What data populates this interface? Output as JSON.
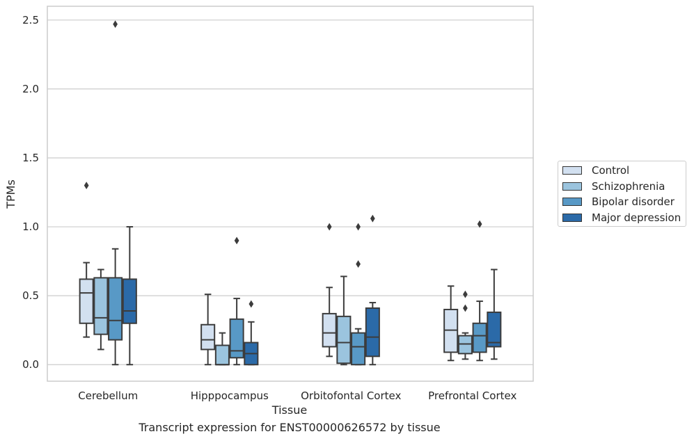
{
  "chart_data": {
    "type": "box",
    "title": "",
    "caption": "Transcript expression for ENST00000626572 by tissue",
    "xlabel": "Tissue",
    "ylabel": "TPMs",
    "ylim": [
      -0.12,
      2.6
    ],
    "yticks": [
      "0.0",
      "0.5",
      "1.0",
      "1.5",
      "2.0",
      "2.5"
    ],
    "ytick_values": [
      0,
      0.5,
      1.0,
      1.5,
      2.0,
      2.5
    ],
    "grid": "horizontal",
    "legend_position": "right",
    "categories": [
      "Cerebellum",
      "Hipppocampus",
      "Orbitofontal Cortex",
      "Prefrontal Cortex"
    ],
    "series": [
      {
        "name": "Control",
        "color": "#d2e0f0",
        "boxes": [
          {
            "whisker_low": 0.2,
            "q1": 0.3,
            "median": 0.52,
            "q3": 0.62,
            "whisker_high": 0.74,
            "outliers": [
              1.3
            ]
          },
          {
            "whisker_low": 0.0,
            "q1": 0.11,
            "median": 0.18,
            "q3": 0.29,
            "whisker_high": 0.51,
            "outliers": []
          },
          {
            "whisker_low": 0.06,
            "q1": 0.13,
            "median": 0.23,
            "q3": 0.37,
            "whisker_high": 0.56,
            "outliers": [
              1.0
            ]
          },
          {
            "whisker_low": 0.03,
            "q1": 0.09,
            "median": 0.25,
            "q3": 0.4,
            "whisker_high": 0.57,
            "outliers": []
          }
        ]
      },
      {
        "name": "Schizophrenia",
        "color": "#9bc4de",
        "boxes": [
          {
            "whisker_low": 0.11,
            "q1": 0.22,
            "median": 0.34,
            "q3": 0.63,
            "whisker_high": 0.69,
            "outliers": []
          },
          {
            "whisker_low": 0.0,
            "q1": 0.0,
            "median": 0.0,
            "q3": 0.14,
            "whisker_high": 0.23,
            "outliers": []
          },
          {
            "whisker_low": 0.0,
            "q1": 0.01,
            "median": 0.16,
            "q3": 0.35,
            "whisker_high": 0.64,
            "outliers": []
          },
          {
            "whisker_low": 0.04,
            "q1": 0.08,
            "median": 0.15,
            "q3": 0.21,
            "whisker_high": 0.23,
            "outliers": [
              0.41,
              0.51
            ]
          }
        ]
      },
      {
        "name": "Bipolar disorder",
        "color": "#5899c6",
        "boxes": [
          {
            "whisker_low": 0.0,
            "q1": 0.18,
            "median": 0.32,
            "q3": 0.63,
            "whisker_high": 0.84,
            "outliers": [
              2.47
            ]
          },
          {
            "whisker_low": 0.0,
            "q1": 0.05,
            "median": 0.1,
            "q3": 0.33,
            "whisker_high": 0.48,
            "outliers": [
              0.9
            ]
          },
          {
            "whisker_low": 0.0,
            "q1": 0.0,
            "median": 0.13,
            "q3": 0.23,
            "whisker_high": 0.26,
            "outliers": [
              0.73,
              1.0
            ]
          },
          {
            "whisker_low": 0.03,
            "q1": 0.09,
            "median": 0.21,
            "q3": 0.3,
            "whisker_high": 0.46,
            "outliers": [
              1.02
            ]
          }
        ]
      },
      {
        "name": "Major depression",
        "color": "#2b6aa8",
        "boxes": [
          {
            "whisker_low": 0.0,
            "q1": 0.3,
            "median": 0.39,
            "q3": 0.62,
            "whisker_high": 1.0,
            "outliers": []
          },
          {
            "whisker_low": 0.0,
            "q1": 0.0,
            "median": 0.08,
            "q3": 0.16,
            "whisker_high": 0.31,
            "outliers": [
              0.44
            ]
          },
          {
            "whisker_low": 0.0,
            "q1": 0.06,
            "median": 0.2,
            "q3": 0.41,
            "whisker_high": 0.45,
            "outliers": [
              1.06
            ]
          },
          {
            "whisker_low": 0.04,
            "q1": 0.13,
            "median": 0.16,
            "q3": 0.38,
            "whisker_high": 0.69,
            "outliers": []
          }
        ]
      }
    ]
  }
}
